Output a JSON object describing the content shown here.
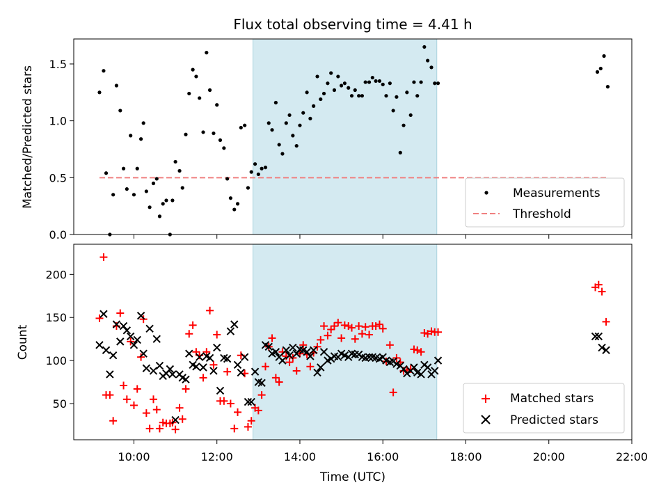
{
  "chart_data": [
    {
      "type": "scatter",
      "title": "Flux total observing time = 4.41 h",
      "xlabel": "",
      "ylabel": "Matched/Predicted stars",
      "ylim": [
        0,
        1.72
      ],
      "yticks": [
        0.0,
        0.5,
        1.0,
        1.5
      ],
      "ytick_labels": [
        "0.0",
        "0.5",
        "1.0",
        "1.5"
      ],
      "xlim_hours": [
        8.55,
        22.0
      ],
      "shaded_span_hours": [
        12.87,
        17.3
      ],
      "shade_color": "#d4eaf1",
      "legend_position": "lower-right",
      "legend": [
        "Measurements",
        "Threshold"
      ],
      "threshold": {
        "name": "Threshold",
        "value": 0.5,
        "x_range_hours": [
          9.17,
          21.4
        ],
        "color": "#f08080"
      },
      "series": [
        {
          "name": "Measurements",
          "marker": "dot",
          "color": "#000000",
          "x": [
            9.17,
            9.27,
            9.33,
            9.42,
            9.5,
            9.58,
            9.67,
            9.75,
            9.83,
            9.92,
            10.0,
            10.08,
            10.17,
            10.23,
            10.3,
            10.38,
            10.47,
            10.55,
            10.62,
            10.7,
            10.78,
            10.87,
            10.93,
            11.0,
            11.1,
            11.17,
            11.25,
            11.33,
            11.42,
            11.5,
            11.58,
            11.67,
            11.75,
            11.83,
            11.92,
            12.0,
            12.08,
            12.17,
            12.25,
            12.33,
            12.42,
            12.5,
            12.58,
            12.67,
            12.75,
            12.83,
            12.92,
            13.0,
            13.08,
            13.17,
            13.25,
            13.33,
            13.42,
            13.5,
            13.58,
            13.67,
            13.75,
            13.83,
            13.92,
            14.0,
            14.08,
            14.17,
            14.25,
            14.33,
            14.42,
            14.5,
            14.58,
            14.67,
            14.75,
            14.83,
            14.92,
            15.0,
            15.08,
            15.17,
            15.25,
            15.33,
            15.42,
            15.5,
            15.58,
            15.67,
            15.75,
            15.83,
            15.92,
            16.0,
            16.08,
            16.17,
            16.25,
            16.33,
            16.42,
            16.5,
            16.58,
            16.67,
            16.75,
            16.83,
            16.92,
            17.0,
            17.08,
            17.17,
            17.25,
            17.33,
            21.17,
            21.25,
            21.33,
            21.42
          ],
          "y": [
            1.25,
            1.44,
            0.54,
            0.0,
            0.35,
            1.31,
            1.09,
            0.58,
            0.4,
            0.87,
            0.35,
            0.58,
            0.84,
            0.98,
            0.38,
            0.24,
            0.45,
            0.49,
            0.16,
            0.27,
            0.3,
            0.0,
            0.3,
            0.64,
            0.56,
            0.41,
            0.88,
            1.24,
            1.45,
            1.39,
            1.2,
            0.9,
            1.6,
            1.27,
            0.89,
            1.14,
            0.83,
            0.76,
            0.49,
            0.32,
            0.22,
            0.27,
            0.94,
            0.96,
            0.41,
            0.55,
            0.62,
            0.53,
            0.58,
            0.59,
            0.98,
            0.92,
            1.16,
            0.79,
            0.71,
            0.98,
            1.05,
            0.87,
            0.78,
            0.96,
            1.07,
            1.25,
            1.02,
            1.13,
            1.39,
            1.19,
            1.24,
            1.33,
            1.42,
            1.27,
            1.39,
            1.31,
            1.33,
            1.29,
            1.22,
            1.27,
            1.22,
            1.22,
            1.34,
            1.34,
            1.38,
            1.35,
            1.35,
            1.32,
            1.22,
            1.33,
            1.09,
            1.21,
            0.72,
            0.96,
            1.25,
            1.05,
            1.34,
            1.22,
            1.34,
            1.65,
            1.53,
            1.47,
            1.33,
            1.33,
            1.43,
            1.46,
            1.57,
            1.3
          ]
        }
      ]
    },
    {
      "type": "scatter",
      "title": "",
      "xlabel": "Time (UTC)",
      "ylabel": "Count",
      "ylim": [
        8,
        235
      ],
      "yticks": [
        50,
        100,
        150,
        200
      ],
      "ytick_labels": [
        "50",
        "100",
        "150",
        "200"
      ],
      "xlim_hours": [
        8.55,
        22.0
      ],
      "xticks_hours": [
        10,
        12,
        14,
        16,
        18,
        20,
        22
      ],
      "xtick_labels": [
        "10:00",
        "12:00",
        "14:00",
        "16:00",
        "18:00",
        "20:00",
        "22:00"
      ],
      "shaded_span_hours": [
        12.87,
        17.3
      ],
      "shade_color": "#d4eaf1",
      "legend_position": "lower-right",
      "legend": [
        "Matched stars",
        "Predicted stars"
      ],
      "series": [
        {
          "name": "Matched stars",
          "marker": "plus",
          "color": "#ff0000",
          "x": [
            9.17,
            9.27,
            9.33,
            9.42,
            9.5,
            9.58,
            9.67,
            9.75,
            9.83,
            9.92,
            10.0,
            10.08,
            10.17,
            10.23,
            10.3,
            10.38,
            10.47,
            10.55,
            10.62,
            10.7,
            10.78,
            10.87,
            10.93,
            11.0,
            11.1,
            11.17,
            11.25,
            11.33,
            11.42,
            11.5,
            11.58,
            11.67,
            11.75,
            11.83,
            11.92,
            12.0,
            12.08,
            12.17,
            12.25,
            12.33,
            12.42,
            12.5,
            12.58,
            12.67,
            12.75,
            12.83,
            12.92,
            13.0,
            13.08,
            13.17,
            13.25,
            13.33,
            13.42,
            13.5,
            13.58,
            13.67,
            13.75,
            13.83,
            13.92,
            14.0,
            14.08,
            14.17,
            14.25,
            14.33,
            14.42,
            14.5,
            14.58,
            14.67,
            14.75,
            14.83,
            14.92,
            15.0,
            15.08,
            15.17,
            15.25,
            15.33,
            15.42,
            15.5,
            15.58,
            15.67,
            15.75,
            15.83,
            15.92,
            16.0,
            16.08,
            16.17,
            16.25,
            16.33,
            16.42,
            16.5,
            16.58,
            16.67,
            16.75,
            16.83,
            16.92,
            17.0,
            17.08,
            17.17,
            17.25,
            17.33,
            21.12,
            21.2,
            21.28,
            21.38
          ],
          "y": [
            149,
            220,
            60,
            60,
            30,
            140,
            155,
            71,
            55,
            122,
            48,
            67,
            104,
            148,
            39,
            21,
            55,
            43,
            21,
            28,
            27,
            27,
            28,
            20,
            45,
            32,
            67,
            131,
            141,
            110,
            106,
            80,
            110,
            158,
            95,
            130,
            53,
            53,
            87,
            50,
            21,
            40,
            106,
            85,
            23,
            30,
            45,
            42,
            60,
            93,
            116,
            126,
            80,
            75,
            110,
            105,
            98,
            103,
            88,
            108,
            118,
            107,
            93,
            109,
            116,
            124,
            140,
            129,
            136,
            140,
            144,
            126,
            141,
            140,
            138,
            125,
            140,
            131,
            139,
            130,
            140,
            140,
            142,
            137,
            99,
            118,
            63,
            103,
            98,
            88,
            89,
            90,
            113,
            112,
            110,
            132,
            131,
            134,
            133,
            133,
            185,
            188,
            180,
            145
          ]
        },
        {
          "name": "Predicted stars",
          "marker": "x",
          "color": "#000000",
          "x": [
            9.17,
            9.27,
            9.33,
            9.42,
            9.5,
            9.58,
            9.67,
            9.75,
            9.83,
            9.92,
            10.0,
            10.08,
            10.17,
            10.23,
            10.3,
            10.38,
            10.47,
            10.55,
            10.62,
            10.7,
            10.78,
            10.87,
            10.93,
            11.0,
            11.1,
            11.17,
            11.25,
            11.33,
            11.42,
            11.5,
            11.58,
            11.67,
            11.75,
            11.83,
            11.92,
            12.0,
            12.08,
            12.17,
            12.25,
            12.33,
            12.42,
            12.5,
            12.58,
            12.67,
            12.75,
            12.83,
            12.92,
            13.0,
            13.08,
            13.17,
            13.25,
            13.33,
            13.42,
            13.5,
            13.58,
            13.67,
            13.75,
            13.83,
            13.92,
            14.0,
            14.08,
            14.17,
            14.25,
            14.33,
            14.42,
            14.5,
            14.58,
            14.67,
            14.75,
            14.83,
            14.92,
            15.0,
            15.08,
            15.17,
            15.25,
            15.33,
            15.42,
            15.5,
            15.58,
            15.67,
            15.75,
            15.83,
            15.92,
            16.0,
            16.08,
            16.17,
            16.25,
            16.33,
            16.42,
            16.5,
            16.58,
            16.67,
            16.75,
            16.83,
            16.92,
            17.0,
            17.08,
            17.17,
            17.25,
            17.33,
            21.12,
            21.2,
            21.28,
            21.38
          ],
          "y": [
            118,
            154,
            112,
            84,
            106,
            142,
            122,
            140,
            135,
            128,
            118,
            124,
            152,
            108,
            91,
            137,
            88,
            125,
            94,
            82,
            85,
            90,
            84,
            31,
            84,
            80,
            78,
            108,
            95,
            93,
            104,
            92,
            105,
            103,
            88,
            115,
            65,
            103,
            102,
            134,
            142,
            95,
            86,
            104,
            52,
            52,
            87,
            75,
            74,
            118,
            116,
            108,
            110,
            104,
            100,
            112,
            106,
            115,
            108,
            113,
            112,
            110,
            105,
            112,
            86,
            92,
            110,
            100,
            102,
            105,
            104,
            108,
            106,
            104,
            108,
            107,
            107,
            104,
            103,
            104,
            104,
            103,
            102,
            104,
            100,
            98,
            99,
            96,
            94,
            90,
            85,
            88,
            92,
            86,
            84,
            95,
            92,
            84,
            88,
            100,
            128,
            128,
            115,
            112
          ]
        }
      ]
    }
  ]
}
